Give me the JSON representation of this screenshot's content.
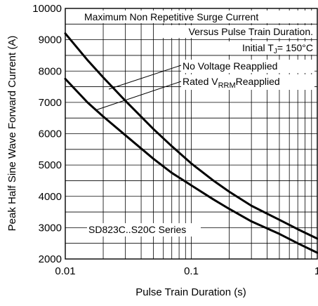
{
  "chart_data": {
    "type": "line",
    "xscale": "log",
    "xlim": [
      0.01,
      1
    ],
    "ylim": [
      2000,
      10000
    ],
    "grid": true,
    "xlabel": "Pulse Train Duration (s)",
    "ylabel": "Peak Half Sine Wave Forward Current (A)",
    "x_ticks": [
      {
        "value": 0.01,
        "label": "0.01"
      },
      {
        "value": 0.1,
        "label": "0.1"
      },
      {
        "value": 1,
        "label": "1"
      }
    ],
    "y_ticks": [
      {
        "value": 2000,
        "label": "2000"
      },
      {
        "value": 3000,
        "label": "3000"
      },
      {
        "value": 4000,
        "label": "4000"
      },
      {
        "value": 5000,
        "label": "5000"
      },
      {
        "value": 6000,
        "label": "6000"
      },
      {
        "value": 7000,
        "label": "7000"
      },
      {
        "value": 8000,
        "label": "8000"
      },
      {
        "value": 9000,
        "label": "9000"
      },
      {
        "value": 10000,
        "label": "10000"
      }
    ],
    "annotations": {
      "title_line1": "Maximum Non Repetitive Surge Current",
      "title_line2": "Versus Pulse Train Duration.",
      "initial_temp": "Initial T",
      "initial_temp_sub": "J",
      "initial_temp_rest": "= 150°C",
      "no_voltage": "No Voltage Reapplied",
      "rated_prefix": "Rated V",
      "rated_sub": "RRM",
      "rated_suffix": "Reapplied",
      "series_label": "SD823C..S20C Series"
    },
    "series": [
      {
        "name": "No Voltage Reapplied",
        "x": [
          0.01,
          0.015,
          0.02,
          0.03,
          0.05,
          0.07,
          0.1,
          0.15,
          0.2,
          0.3,
          0.5,
          0.7,
          1.0
        ],
        "y": [
          9200,
          8350,
          7800,
          7050,
          6150,
          5600,
          5050,
          4500,
          4150,
          3700,
          3250,
          2950,
          2650
        ]
      },
      {
        "name": "Rated VRRM Reapplied",
        "x": [
          0.01,
          0.015,
          0.02,
          0.03,
          0.05,
          0.07,
          0.1,
          0.15,
          0.2,
          0.3,
          0.5,
          0.7,
          1.0
        ],
        "y": [
          7750,
          7000,
          6550,
          5950,
          5200,
          4750,
          4350,
          3900,
          3600,
          3200,
          2800,
          2500,
          2200
        ]
      }
    ]
  }
}
